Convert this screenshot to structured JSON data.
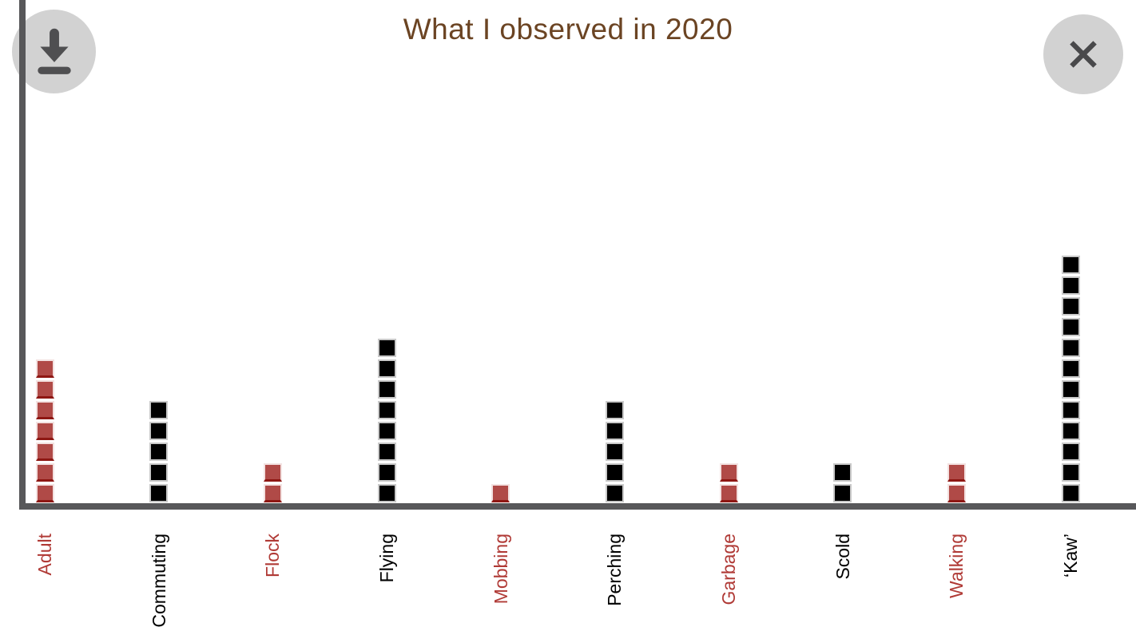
{
  "header": {
    "title": "What I observed in 2020"
  },
  "buttons": {
    "download_icon": "download-icon",
    "close_icon": "close-icon"
  },
  "chart_data": {
    "type": "bar",
    "subtype": "unit-square-stack",
    "title": "What I observed in 2020",
    "categories": [
      "Adult",
      "Commuting",
      "Flock",
      "Flying",
      "Mobbing",
      "Perching",
      "Garbage",
      "Scold",
      "Walking",
      "‘Kaw’"
    ],
    "values": [
      7,
      5,
      2,
      8,
      1,
      5,
      2,
      2,
      2,
      12
    ],
    "series_colors": [
      "red",
      "black",
      "red",
      "black",
      "red",
      "black",
      "red",
      "black",
      "red",
      "black"
    ],
    "unit_per_square": 1,
    "ylim": [
      0,
      12
    ],
    "grid": false,
    "legend": "none",
    "xlabel": "",
    "ylabel": "",
    "palette": {
      "red_square": "#b04a47",
      "red_square_border": "#f3e2e1",
      "red_square_bottom_edge": "#8e1713",
      "black_square": "#000000",
      "black_square_border": "#c9c9c9",
      "red_label": "#b03a36",
      "black_label": "#000000"
    }
  },
  "colors": {
    "title_text": "#6b4423",
    "axis": "#58585a",
    "button_background": "#d2d2d2",
    "button_icon": "#4f4f51",
    "background": "#ffffff"
  }
}
